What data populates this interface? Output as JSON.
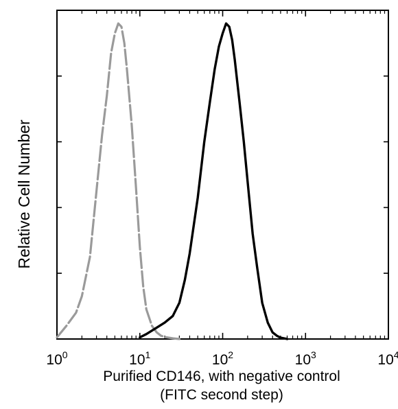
{
  "chart_data": {
    "type": "line",
    "x_scale": "log",
    "xlim": [
      1,
      10000
    ],
    "ylim": [
      0,
      100
    ],
    "grid": false,
    "legend": "none",
    "ylabel": "Relative Cell Number",
    "xlabel": [
      "Purified  CD146, with negative control",
      "(FITC second step)"
    ],
    "x_ticks": [
      {
        "base": "10",
        "exp": "0",
        "value": 1
      },
      {
        "base": "10",
        "exp": "1",
        "value": 10
      },
      {
        "base": "10",
        "exp": "2",
        "value": 100
      },
      {
        "base": "10",
        "exp": "3",
        "value": 1000
      },
      {
        "base": "10",
        "exp": "4",
        "value": 10000
      }
    ],
    "y_tick_values": [
      0,
      20,
      40,
      60,
      80,
      100
    ],
    "series": [
      {
        "color": "#9a9a9a",
        "dashed": true,
        "x": [
          1.0,
          1.3,
          1.7,
          2.0,
          2.5,
          3.0,
          3.5,
          4.0,
          4.5,
          5.0,
          5.5,
          6.0,
          6.5,
          7.0,
          8.0,
          9.0,
          10.0,
          11.0,
          12.0,
          14.0,
          16.0,
          18.0,
          20.0,
          25.0,
          30.0
        ],
        "y": [
          0.5,
          4,
          8,
          13,
          25,
          45,
          62,
          74,
          87,
          93,
          96,
          95,
          90,
          82,
          65,
          46,
          28,
          16,
          9,
          4,
          2,
          1,
          0.6,
          0.2,
          0
        ]
      },
      {
        "color": "#000000",
        "dashed": false,
        "x": [
          10,
          12,
          15,
          20,
          25,
          30,
          35,
          40,
          50,
          60,
          70,
          80,
          90,
          100,
          110,
          120,
          130,
          140,
          160,
          180,
          200,
          230,
          260,
          300,
          350,
          400,
          450,
          500,
          550,
          600
        ],
        "y": [
          0.5,
          1.5,
          3,
          5,
          7,
          11,
          18,
          26,
          43,
          60,
          72,
          82,
          89,
          93,
          96,
          95,
          91,
          85,
          72,
          60,
          48,
          32,
          22,
          11,
          5,
          2,
          1,
          0.4,
          0.2,
          0
        ]
      }
    ]
  }
}
